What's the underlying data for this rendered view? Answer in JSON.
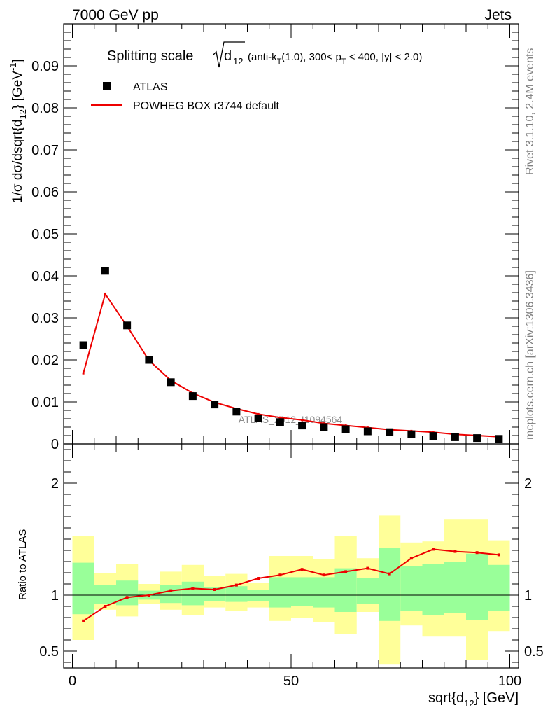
{
  "header": {
    "left": "7000 GeV pp",
    "right": "Jets"
  },
  "side_labels": {
    "rivet": "Rivet 3.1.10,  2.4M events",
    "mcplots": "mcplots.cern.ch [arXiv:1306.3436]"
  },
  "watermark": "ATLAS_2012_I1094564",
  "title": {
    "prefix": "Splitting scale",
    "sqrt_var": "d",
    "sqrt_sub": "12",
    "rest1": " (anti-k",
    "rest_sub1": "T",
    "rest2": "(1.0), 300< p",
    "rest_sub2": "T",
    "rest3": " < 400, |y| < 2.0)"
  },
  "legend": {
    "data_label": "ATLAS",
    "mc_label": "POWHEG BOX r3744 default"
  },
  "main_ylabel": {
    "base": "1/σ dσ/dsqrt{d",
    "sub": "12",
    "mid": "} [GeV",
    "sup": "-1",
    "end": "]"
  },
  "ratio_ylabel": "Ratio to ATLAS",
  "xlabel": {
    "base": "sqrt{d",
    "sub": "12",
    "end": "} [GeV]"
  },
  "chart_data": [
    {
      "type": "scatter",
      "panel": "main",
      "xlim": [
        -2,
        102
      ],
      "ylim": [
        0,
        0.1
      ],
      "yticks": [
        0,
        0.01,
        0.02,
        0.03,
        0.04,
        0.05,
        0.06,
        0.07,
        0.08,
        0.09
      ],
      "ytick_labels": [
        "0",
        "0.01",
        "0.02",
        "0.03",
        "0.04",
        "0.05",
        "0.06",
        "0.07",
        "0.08",
        "0.09"
      ],
      "x": [
        2.5,
        7.5,
        12.5,
        17.5,
        22.5,
        27.5,
        32.5,
        37.5,
        42.5,
        47.5,
        52.5,
        57.5,
        62.5,
        67.5,
        72.5,
        77.5,
        82.5,
        87.5,
        92.5,
        97.5
      ],
      "series": [
        {
          "name": "ATLAS",
          "values": [
            0.0235,
            0.0412,
            0.0282,
            0.02,
            0.0147,
            0.0114,
            0.0094,
            0.0077,
            0.0061,
            0.0052,
            0.0044,
            0.004,
            0.0035,
            0.003,
            0.0028,
            0.0023,
            0.0019,
            0.0016,
            0.0014,
            0.0012
          ]
        },
        {
          "name": "POWHEG BOX r3744 default",
          "values": [
            0.0168,
            0.0357,
            0.028,
            0.0199,
            0.0151,
            0.0121,
            0.0099,
            0.0084,
            0.0071,
            0.0063,
            0.0057,
            0.0049,
            0.0044,
            0.0039,
            0.0034,
            0.0031,
            0.0028,
            0.0023,
            0.002,
            0.0017
          ]
        }
      ]
    },
    {
      "type": "line",
      "panel": "ratio",
      "xlim": [
        -2,
        102
      ],
      "ylim": [
        0.35,
        2.35
      ],
      "yticks": [
        0.5,
        1,
        2
      ],
      "ytick_labels": [
        "0.5",
        "1",
        "2"
      ],
      "xticks": [
        0,
        50,
        100
      ],
      "xtick_labels": [
        "0",
        "50",
        "100"
      ],
      "bin_edges": [
        0,
        5,
        10,
        15,
        20,
        25,
        30,
        35,
        40,
        45,
        50,
        55,
        60,
        65,
        70,
        75,
        80,
        85,
        90,
        95,
        100
      ],
      "band_outer": {
        "low": [
          0.6,
          0.87,
          0.81,
          0.92,
          0.87,
          0.82,
          0.89,
          0.86,
          0.89,
          0.77,
          0.8,
          0.76,
          0.65,
          0.85,
          0.38,
          0.73,
          0.63,
          0.63,
          0.42,
          0.68
        ],
        "high": [
          1.53,
          1.2,
          1.28,
          1.1,
          1.21,
          1.27,
          1.17,
          1.19,
          1.11,
          1.35,
          1.35,
          1.32,
          1.53,
          1.33,
          1.71,
          1.47,
          1.48,
          1.68,
          1.68,
          1.49
        ]
      },
      "band_inner": {
        "low": [
          0.83,
          0.92,
          0.91,
          0.96,
          0.93,
          0.91,
          0.95,
          0.94,
          0.95,
          0.89,
          0.9,
          0.89,
          0.85,
          0.92,
          0.77,
          0.86,
          0.82,
          0.84,
          0.78,
          0.86
        ],
        "high": [
          1.29,
          1.09,
          1.13,
          1.04,
          1.09,
          1.12,
          1.07,
          1.08,
          1.05,
          1.16,
          1.16,
          1.16,
          1.24,
          1.15,
          1.42,
          1.26,
          1.28,
          1.3,
          1.37,
          1.27
        ]
      },
      "x": [
        2.5,
        7.5,
        12.5,
        17.5,
        22.5,
        27.5,
        32.5,
        37.5,
        42.5,
        47.5,
        52.5,
        57.5,
        62.5,
        67.5,
        72.5,
        77.5,
        82.5,
        87.5,
        92.5,
        97.5
      ],
      "series": [
        {
          "name": "POWHEG BOX r3744 default / ATLAS",
          "values": [
            0.77,
            0.9,
            0.98,
            1.0,
            1.04,
            1.06,
            1.05,
            1.09,
            1.15,
            1.18,
            1.23,
            1.18,
            1.21,
            1.24,
            1.19,
            1.33,
            1.41,
            1.39,
            1.38,
            1.36
          ]
        }
      ],
      "reference_line": 1
    }
  ],
  "colors": {
    "data": "#000000",
    "mc": "#ee0000",
    "band_outer": "#ffff99",
    "band_inner": "#99ff99",
    "gray_text": "#7f7f7f"
  }
}
